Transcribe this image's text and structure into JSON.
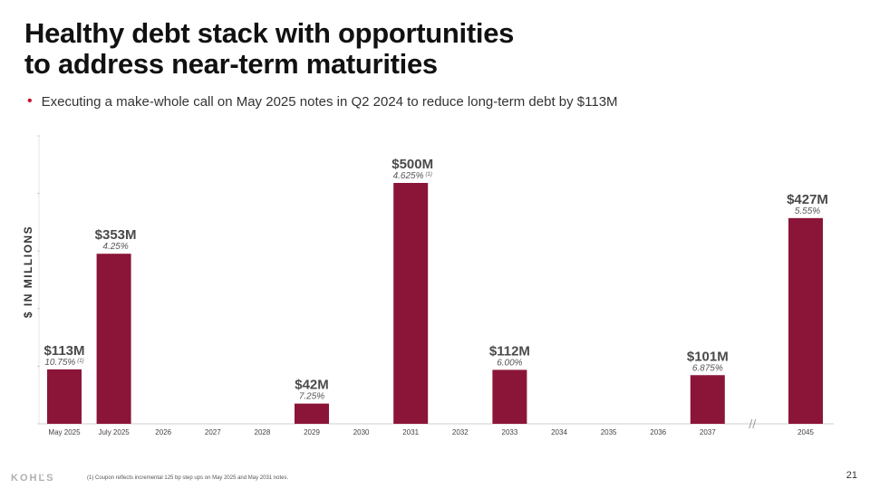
{
  "title_lines": [
    "Healthy debt stack with opportunities",
    "to address near-term maturities"
  ],
  "bullet": "Executing a make-whole call on May 2025 notes in Q2 2024 to reduce long-term debt by $113M",
  "ylabel": "$ IN MILLIONS",
  "footer": {
    "logo": "KOHĽS",
    "footnote": "(1)    Coupon reflects incremental 125 bp step ups on May 2025 and May 2031 notes.",
    "page_number": "21"
  },
  "colors": {
    "bar": "#8b1538",
    "bullet": "#c8102e"
  },
  "chart_data": {
    "type": "bar",
    "categories": [
      "May 2025",
      "July 2025",
      "2026",
      "2027",
      "2028",
      "2029",
      "2030",
      "2031",
      "2032",
      "2033",
      "2034",
      "2035",
      "2036",
      "2037",
      "2045"
    ],
    "values": [
      113,
      353,
      0,
      0,
      0,
      42,
      0,
      500,
      0,
      112,
      0,
      0,
      0,
      101,
      427
    ],
    "value_labels": [
      "$113M",
      "$353M",
      "",
      "",
      "",
      "$42M",
      "",
      "$500M",
      "",
      "$112M",
      "",
      "",
      "",
      "$101M",
      "$427M"
    ],
    "rate_labels": [
      "10.75%",
      "4.25%",
      "",
      "",
      "",
      "7.25%",
      "",
      "4.625%",
      "",
      "6.00%",
      "",
      "",
      "",
      "6.875%",
      "5.55%"
    ],
    "rate_footnotes": [
      "(1)",
      "",
      "",
      "",
      "",
      "",
      "",
      "(1)",
      "",
      "",
      "",
      "",
      "",
      "",
      ""
    ],
    "ylabel": "$ IN MILLIONS",
    "ylim": [
      0,
      600
    ],
    "axis_break_after": "2037",
    "grid": false
  }
}
